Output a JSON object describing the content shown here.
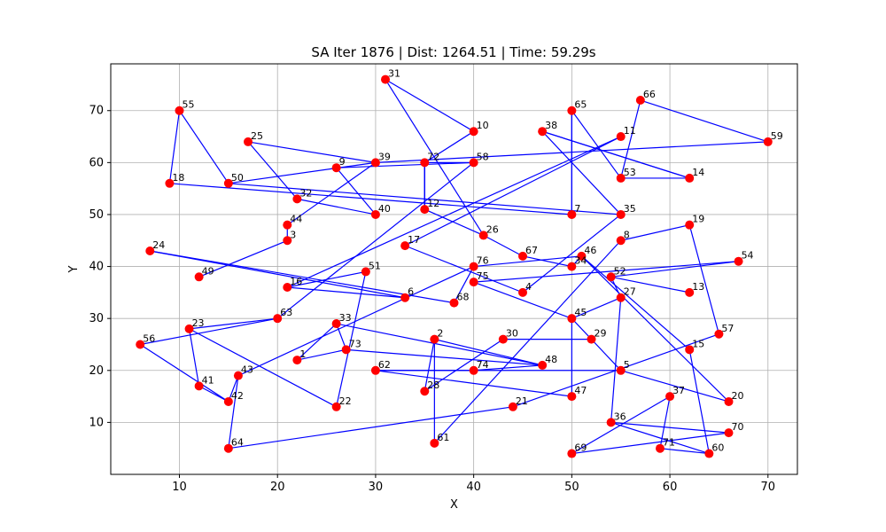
{
  "chart_data": {
    "type": "scatter",
    "title": "SA Iter 1876 | Dist: 1264.51 | Time: 59.29s",
    "xlabel": "X",
    "ylabel": "Y",
    "xlim": [
      3,
      73
    ],
    "ylim": [
      0,
      79
    ],
    "xticks": [
      10,
      20,
      30,
      40,
      50,
      60,
      70
    ],
    "yticks": [
      10,
      20,
      30,
      40,
      50,
      60,
      70
    ],
    "grid": true,
    "point_color": "#ff0000",
    "route_color": "#0000ff",
    "points": [
      {
        "id": "1",
        "x": 22,
        "y": 22
      },
      {
        "id": "2",
        "x": 36,
        "y": 26
      },
      {
        "id": "3",
        "x": 21,
        "y": 45
      },
      {
        "id": "5",
        "x": 55,
        "y": 20
      },
      {
        "id": "6",
        "x": 33,
        "y": 34
      },
      {
        "id": "7",
        "x": 50,
        "y": 50
      },
      {
        "id": "8",
        "x": 55,
        "y": 45
      },
      {
        "id": "9",
        "x": 26,
        "y": 59
      },
      {
        "id": "10",
        "x": 40,
        "y": 66
      },
      {
        "id": "11",
        "x": 55,
        "y": 65
      },
      {
        "id": "12",
        "x": 35,
        "y": 51
      },
      {
        "id": "13",
        "x": 62,
        "y": 35
      },
      {
        "id": "14",
        "x": 62,
        "y": 57
      },
      {
        "id": "15",
        "x": 62,
        "y": 24
      },
      {
        "id": "16",
        "x": 21,
        "y": 36
      },
      {
        "id": "17",
        "x": 33,
        "y": 44
      },
      {
        "id": "18",
        "x": 9,
        "y": 56
      },
      {
        "id": "19",
        "x": 62,
        "y": 48
      },
      {
        "id": "20",
        "x": 66,
        "y": 14
      },
      {
        "id": "21",
        "x": 44,
        "y": 13
      },
      {
        "id": "22",
        "x": 26,
        "y": 13
      },
      {
        "id": "23",
        "x": 11,
        "y": 28
      },
      {
        "id": "24",
        "x": 7,
        "y": 43
      },
      {
        "id": "25",
        "x": 17,
        "y": 64
      },
      {
        "id": "26",
        "x": 41,
        "y": 46
      },
      {
        "id": "27",
        "x": 55,
        "y": 34
      },
      {
        "id": "28",
        "x": 35,
        "y": 16
      },
      {
        "id": "29",
        "x": 52,
        "y": 26
      },
      {
        "id": "30",
        "x": 43,
        "y": 26
      },
      {
        "id": "31",
        "x": 31,
        "y": 76
      },
      {
        "id": "32",
        "x": 22,
        "y": 53
      },
      {
        "id": "33",
        "x": 26,
        "y": 29
      },
      {
        "id": "34",
        "x": 50,
        "y": 40
      },
      {
        "id": "35",
        "x": 55,
        "y": 50
      },
      {
        "id": "36",
        "x": 54,
        "y": 10
      },
      {
        "id": "37",
        "x": 60,
        "y": 15
      },
      {
        "id": "38",
        "x": 47,
        "y": 66
      },
      {
        "id": "39",
        "x": 30,
        "y": 60
      },
      {
        "id": "40",
        "x": 30,
        "y": 50
      },
      {
        "id": "41",
        "x": 12,
        "y": 17
      },
      {
        "id": "42",
        "x": 15,
        "y": 14
      },
      {
        "id": "43",
        "x": 16,
        "y": 19
      },
      {
        "id": "44",
        "x": 21,
        "y": 48
      },
      {
        "id": "45",
        "x": 50,
        "y": 30
      },
      {
        "id": "46",
        "x": 51,
        "y": 42
      },
      {
        "id": "47",
        "x": 50,
        "y": 15
      },
      {
        "id": "48",
        "x": 47,
        "y": 21
      },
      {
        "id": "49",
        "x": 12,
        "y": 38
      },
      {
        "id": "50",
        "x": 15,
        "y": 56
      },
      {
        "id": "51",
        "x": 29,
        "y": 39
      },
      {
        "id": "52",
        "x": 54,
        "y": 38
      },
      {
        "id": "53",
        "x": 55,
        "y": 57
      },
      {
        "id": "54",
        "x": 67,
        "y": 41
      },
      {
        "id": "55",
        "x": 10,
        "y": 70
      },
      {
        "id": "56",
        "x": 6,
        "y": 25
      },
      {
        "id": "57",
        "x": 65,
        "y": 27
      },
      {
        "id": "58",
        "x": 40,
        "y": 60
      },
      {
        "id": "59",
        "x": 70,
        "y": 64
      },
      {
        "id": "60",
        "x": 64,
        "y": 4
      },
      {
        "id": "61",
        "x": 36,
        "y": 6
      },
      {
        "id": "62",
        "x": 30,
        "y": 20
      },
      {
        "id": "63",
        "x": 20,
        "y": 30
      },
      {
        "id": "64",
        "x": 15,
        "y": 5
      },
      {
        "id": "65",
        "x": 50,
        "y": 70
      },
      {
        "id": "66",
        "x": 57,
        "y": 72
      },
      {
        "id": "67",
        "x": 45,
        "y": 42
      },
      {
        "id": "68",
        "x": 38,
        "y": 33
      },
      {
        "id": "69",
        "x": 50,
        "y": 4
      },
      {
        "id": "70",
        "x": 66,
        "y": 8
      },
      {
        "id": "71",
        "x": 59,
        "y": 5
      },
      {
        "id": "72",
        "x": 35,
        "y": 60
      },
      {
        "id": "73",
        "x": 27,
        "y": 24
      },
      {
        "id": "74",
        "x": 40,
        "y": 20
      },
      {
        "id": "75",
        "x": 40,
        "y": 37
      },
      {
        "id": "76",
        "x": 40,
        "y": 40
      },
      {
        "id": "4",
        "x": 45,
        "y": 35
      }
    ],
    "route": [
      "18",
      "7",
      "35",
      "38",
      "14",
      "53",
      "65",
      "7",
      "14",
      "53",
      "11",
      "16",
      "51",
      "22",
      "33",
      "73",
      "1",
      "2",
      "28",
      "27",
      "36",
      "70",
      "69",
      "37",
      "71",
      "60",
      "20",
      "46",
      "40",
      "9",
      "39",
      "44",
      "49",
      "3",
      "25",
      "6",
      "63",
      "56",
      "41",
      "23",
      "42",
      "64",
      "21",
      "57",
      "19",
      "8",
      "61",
      "74",
      "2",
      "48",
      "33",
      "62",
      "47",
      "45",
      "29",
      "30",
      "45",
      "34",
      "4",
      "26",
      "31",
      "10",
      "50",
      "55",
      "18"
    ],
    "route_segments": [
      [
        "18",
        "7"
      ],
      [
        "7",
        "65"
      ],
      [
        "65",
        "53"
      ],
      [
        "53",
        "14"
      ],
      [
        "14",
        "38"
      ],
      [
        "38",
        "35"
      ],
      [
        "35",
        "50"
      ],
      [
        "11",
        "16"
      ],
      [
        "16",
        "51"
      ],
      [
        "51",
        "22"
      ],
      [
        "33",
        "73"
      ],
      [
        "73",
        "1"
      ],
      [
        "1",
        "33"
      ],
      [
        "33",
        "48"
      ],
      [
        "48",
        "73"
      ],
      [
        "2",
        "28"
      ],
      [
        "2",
        "48"
      ],
      [
        "62",
        "74"
      ],
      [
        "74",
        "48"
      ],
      [
        "62",
        "47"
      ],
      [
        "47",
        "45"
      ],
      [
        "45",
        "27"
      ],
      [
        "27",
        "36"
      ],
      [
        "36",
        "70"
      ],
      [
        "70",
        "69"
      ],
      [
        "69",
        "37"
      ],
      [
        "37",
        "71"
      ],
      [
        "71",
        "60"
      ],
      [
        "60",
        "36"
      ],
      [
        "27",
        "52"
      ],
      [
        "52",
        "13"
      ],
      [
        "52",
        "54"
      ],
      [
        "54",
        "75"
      ],
      [
        "75",
        "45"
      ],
      [
        "46",
        "20"
      ],
      [
        "46",
        "34"
      ],
      [
        "34",
        "67"
      ],
      [
        "67",
        "26"
      ],
      [
        "26",
        "12"
      ],
      [
        "12",
        "72"
      ],
      [
        "72",
        "58"
      ],
      [
        "58",
        "9"
      ],
      [
        "9",
        "40"
      ],
      [
        "40",
        "32"
      ],
      [
        "32",
        "25"
      ],
      [
        "25",
        "39"
      ],
      [
        "39",
        "50"
      ],
      [
        "50",
        "55"
      ],
      [
        "55",
        "18"
      ],
      [
        "58",
        "63"
      ],
      [
        "63",
        "56"
      ],
      [
        "56",
        "42"
      ],
      [
        "42",
        "43"
      ],
      [
        "43",
        "76"
      ],
      [
        "76",
        "46"
      ],
      [
        "41",
        "23"
      ],
      [
        "41",
        "42"
      ],
      [
        "23",
        "22"
      ],
      [
        "23",
        "63"
      ],
      [
        "64",
        "21"
      ],
      [
        "21",
        "57"
      ],
      [
        "57",
        "19"
      ],
      [
        "19",
        "8"
      ],
      [
        "8",
        "61"
      ],
      [
        "61",
        "2"
      ],
      [
        "28",
        "30"
      ],
      [
        "30",
        "29"
      ],
      [
        "29",
        "45"
      ],
      [
        "5",
        "20"
      ],
      [
        "5",
        "29"
      ],
      [
        "5",
        "62"
      ],
      [
        "15",
        "46"
      ],
      [
        "15",
        "60"
      ],
      [
        "24",
        "68"
      ],
      [
        "68",
        "76"
      ],
      [
        "31",
        "10"
      ],
      [
        "10",
        "72"
      ],
      [
        "31",
        "26"
      ],
      [
        "11",
        "17"
      ],
      [
        "17",
        "4"
      ],
      [
        "4",
        "35"
      ],
      [
        "3",
        "49"
      ],
      [
        "3",
        "44"
      ],
      [
        "44",
        "39"
      ],
      [
        "39",
        "59"
      ],
      [
        "59",
        "66"
      ],
      [
        "66",
        "53"
      ],
      [
        "6",
        "16"
      ],
      [
        "6",
        "24"
      ],
      [
        "64",
        "43"
      ],
      [
        "12",
        "72"
      ],
      [
        "38",
        "14"
      ],
      [
        "65",
        "7"
      ],
      [
        "72",
        "12"
      ]
    ]
  }
}
